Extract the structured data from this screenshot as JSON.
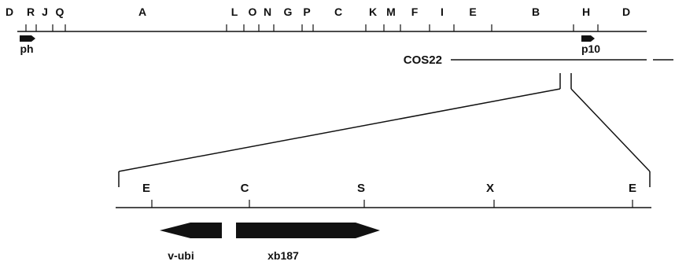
{
  "genome_map": {
    "fragment_labels": [
      "D",
      "R",
      "J",
      "Q",
      "A",
      "L",
      "O",
      "N",
      "G",
      "P",
      "C",
      "K",
      "M",
      "F",
      "I",
      "E",
      "B",
      "H",
      "D"
    ],
    "promoters": {
      "ph": "ph",
      "p10": "p10"
    },
    "cosmid_label": "COS22"
  },
  "expanded_region": {
    "sites": [
      "E",
      "C",
      "S",
      "X",
      "E"
    ],
    "genes": {
      "v_ubi": "v-ubi",
      "xb187": "xb187"
    }
  }
}
